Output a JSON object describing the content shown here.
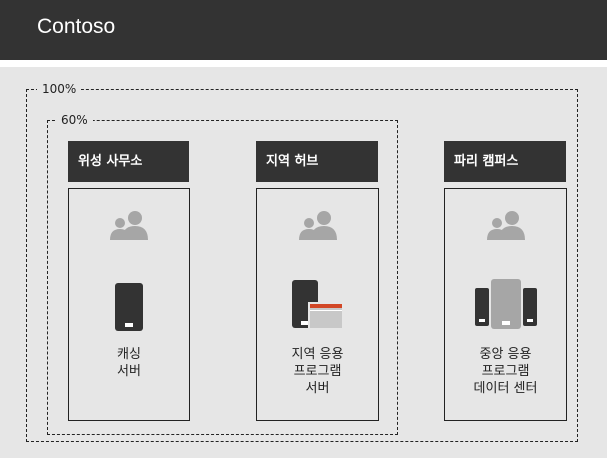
{
  "header": {
    "title": "Contoso"
  },
  "scopes": {
    "outer_label": "100%",
    "inner_label": "60%"
  },
  "sites": [
    {
      "title": "위성 사무소",
      "label": "캐싱\n서버",
      "users_icon": "users-icon",
      "server_icon": "single-device-icon"
    },
    {
      "title": "지역 허브",
      "label": "지역 응용\n프로그램\n서버",
      "users_icon": "users-icon",
      "server_icon": "device-with-window-icon"
    },
    {
      "title": "파리 캠퍼스",
      "label": "중앙 응용\n프로그램\n데이터 센터",
      "users_icon": "users-icon",
      "server_icon": "server-cluster-icon"
    }
  ],
  "colors": {
    "header_bg": "#333333",
    "canvas_bg": "#e6e6e6",
    "icon_gray": "#a6a6a6",
    "accent_orange": "#d24726",
    "device_dark": "#333333"
  }
}
